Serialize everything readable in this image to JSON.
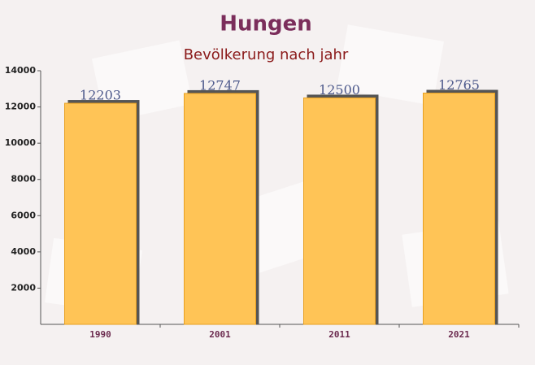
{
  "chart_data": {
    "type": "bar",
    "title": "Hungen",
    "subtitle": "Bevölkerung nach jahr",
    "categories": [
      "1990",
      "2001",
      "2011",
      "2021"
    ],
    "values": [
      12203,
      12747,
      12500,
      12765
    ],
    "color": "#ffc456",
    "ylim": [
      0,
      14000
    ],
    "yticks": [
      2000,
      4000,
      6000,
      8000,
      10000,
      12000,
      14000
    ]
  }
}
